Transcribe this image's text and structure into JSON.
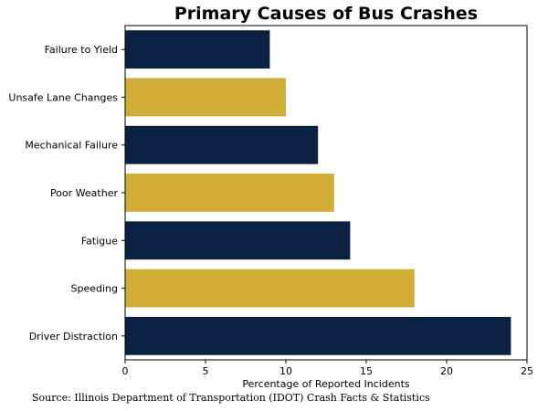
{
  "chart_data": {
    "type": "bar",
    "orientation": "horizontal",
    "title": "Primary Causes of Bus Crashes",
    "xlabel": "Percentage of Reported Incidents",
    "ylabel": "",
    "categories": [
      "Failure to Yield",
      "Unsafe Lane Changes",
      "Mechanical Failure",
      "Poor Weather",
      "Fatigue",
      "Speeding",
      "Driver Distraction"
    ],
    "values": [
      9,
      10,
      12,
      13,
      14,
      18,
      24
    ],
    "bar_colors": [
      "#0b2143",
      "#d2ad36",
      "#0b2143",
      "#d2ad36",
      "#0b2143",
      "#d2ad36",
      "#0b2143"
    ],
    "xlim": [
      0,
      25
    ],
    "xticks": [
      0,
      5,
      10,
      15,
      20,
      25
    ],
    "grid": false,
    "legend": "none"
  },
  "source": "Source: Illinois Department of Transportation (IDOT) Crash Facts & Statistics"
}
